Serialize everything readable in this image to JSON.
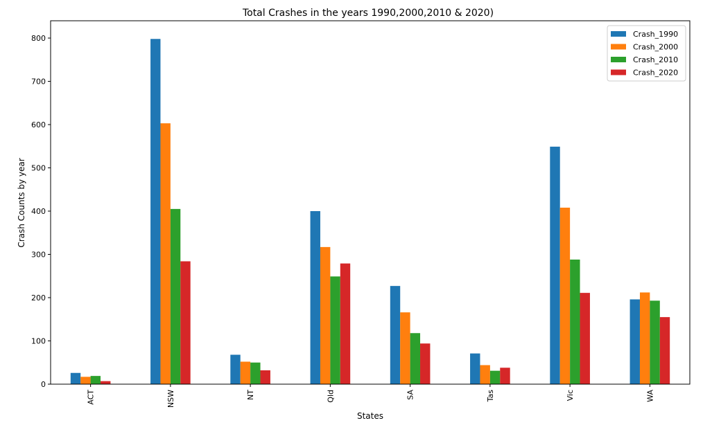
{
  "chart_data": {
    "type": "bar",
    "title": "Total Crashes in the years 1990,2000,2010 & 2020)",
    "xlabel": "States",
    "ylabel": "Crash Counts by year",
    "categories": [
      "ACT",
      "NSW",
      "NT",
      "Qld",
      "SA",
      "Tas",
      "Vic",
      "WA"
    ],
    "ylim": [
      0,
      840
    ],
    "yticks": [
      0,
      100,
      200,
      300,
      400,
      500,
      600,
      700,
      800
    ],
    "grid": false,
    "legend_position": "top-right",
    "series": [
      {
        "name": "Crash_1990",
        "color": "#1f77b4",
        "values": [
          26,
          798,
          68,
          400,
          227,
          71,
          549,
          196
        ]
      },
      {
        "name": "Crash_2000",
        "color": "#ff7f0e",
        "values": [
          17,
          603,
          52,
          317,
          166,
          44,
          408,
          212
        ]
      },
      {
        "name": "Crash_2010",
        "color": "#2ca02c",
        "values": [
          19,
          405,
          50,
          249,
          118,
          31,
          288,
          193
        ]
      },
      {
        "name": "Crash_2020",
        "color": "#d62728",
        "values": [
          7,
          284,
          32,
          279,
          94,
          38,
          211,
          155
        ]
      }
    ]
  }
}
